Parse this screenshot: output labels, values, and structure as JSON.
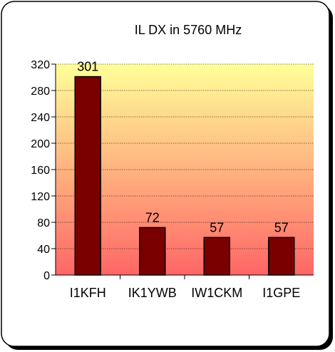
{
  "chart_data": {
    "type": "bar",
    "title": "IL DX in 5760 MHz",
    "categories": [
      "I1KFH",
      "IK1YWB",
      "IW1CKM",
      "I1GPE"
    ],
    "values": [
      301,
      72,
      57,
      57
    ],
    "ylim": [
      0,
      320
    ],
    "yticks": [
      0,
      40,
      80,
      120,
      160,
      200,
      240,
      280,
      320
    ],
    "grid": true,
    "legend": "none",
    "colors": {
      "bar_fill": "#7a0000",
      "bar_edge": "#000000",
      "plot_bg_top": "#ffff99",
      "plot_bg_bottom": "#ff6666",
      "gridline": "#000000"
    }
  }
}
